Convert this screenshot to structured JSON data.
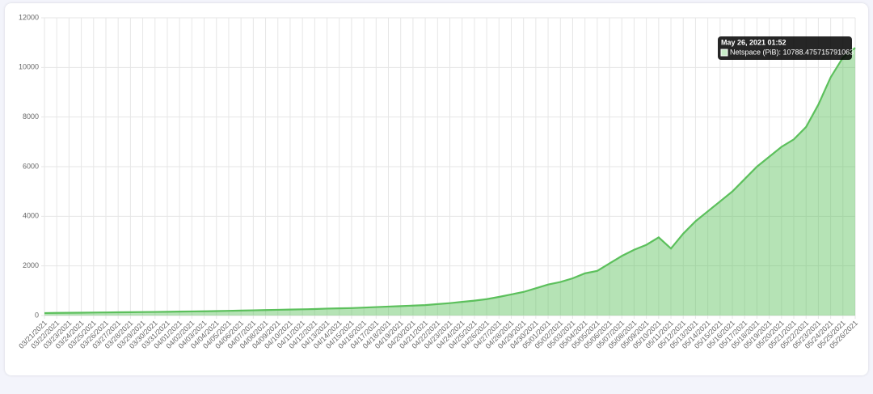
{
  "chart_data": {
    "type": "area",
    "categories": [
      "03/21/2021",
      "03/22/2021",
      "03/23/2021",
      "03/24/2021",
      "03/25/2021",
      "03/26/2021",
      "03/27/2021",
      "03/28/2021",
      "03/29/2021",
      "03/30/2021",
      "03/31/2021",
      "04/01/2021",
      "04/02/2021",
      "04/03/2021",
      "04/04/2021",
      "04/05/2021",
      "04/06/2021",
      "04/07/2021",
      "04/08/2021",
      "04/09/2021",
      "04/10/2021",
      "04/11/2021",
      "04/12/2021",
      "04/13/2021",
      "04/14/2021",
      "04/15/2021",
      "04/16/2021",
      "04/17/2021",
      "04/18/2021",
      "04/19/2021",
      "04/20/2021",
      "04/21/2021",
      "04/22/2021",
      "04/23/2021",
      "04/24/2021",
      "04/25/2021",
      "04/26/2021",
      "04/27/2021",
      "04/28/2021",
      "04/29/2021",
      "04/30/2021",
      "05/01/2021",
      "05/02/2021",
      "05/03/2021",
      "05/04/2021",
      "05/05/2021",
      "05/06/2021",
      "05/07/2021",
      "05/08/2021",
      "05/09/2021",
      "05/10/2021",
      "05/11/2021",
      "05/12/2021",
      "05/13/2021",
      "05/14/2021",
      "05/15/2021",
      "05/16/2021",
      "05/17/2021",
      "05/18/2021",
      "05/19/2021",
      "05/20/2021",
      "05/21/2021",
      "05/22/2021",
      "05/23/2021",
      "05/24/2021",
      "05/25/2021",
      "05/26/2021"
    ],
    "values": [
      100,
      105,
      110,
      115,
      120,
      125,
      130,
      135,
      140,
      145,
      150,
      160,
      165,
      170,
      180,
      190,
      200,
      210,
      220,
      230,
      240,
      250,
      260,
      280,
      290,
      300,
      320,
      340,
      360,
      380,
      400,
      420,
      460,
      500,
      550,
      600,
      660,
      750,
      850,
      950,
      1100,
      1250,
      1350,
      1500,
      1700,
      1800,
      2100,
      2400,
      2650,
      2850,
      3150,
      2700,
      3300,
      3800,
      4200,
      4600,
      5000,
      5500,
      6000,
      6400,
      6800,
      7100,
      7600,
      8500,
      9600,
      10400,
      10788.475715791063
    ],
    "color": "#5cc05c",
    "ylim": [
      0,
      12000
    ],
    "yticks": [
      0,
      2000,
      4000,
      6000,
      8000,
      10000,
      12000
    ],
    "grid": true,
    "tooltip": {
      "title": "May 26, 2021 01:52",
      "text": "Netspace (PiB): 10788.475715791063"
    }
  }
}
